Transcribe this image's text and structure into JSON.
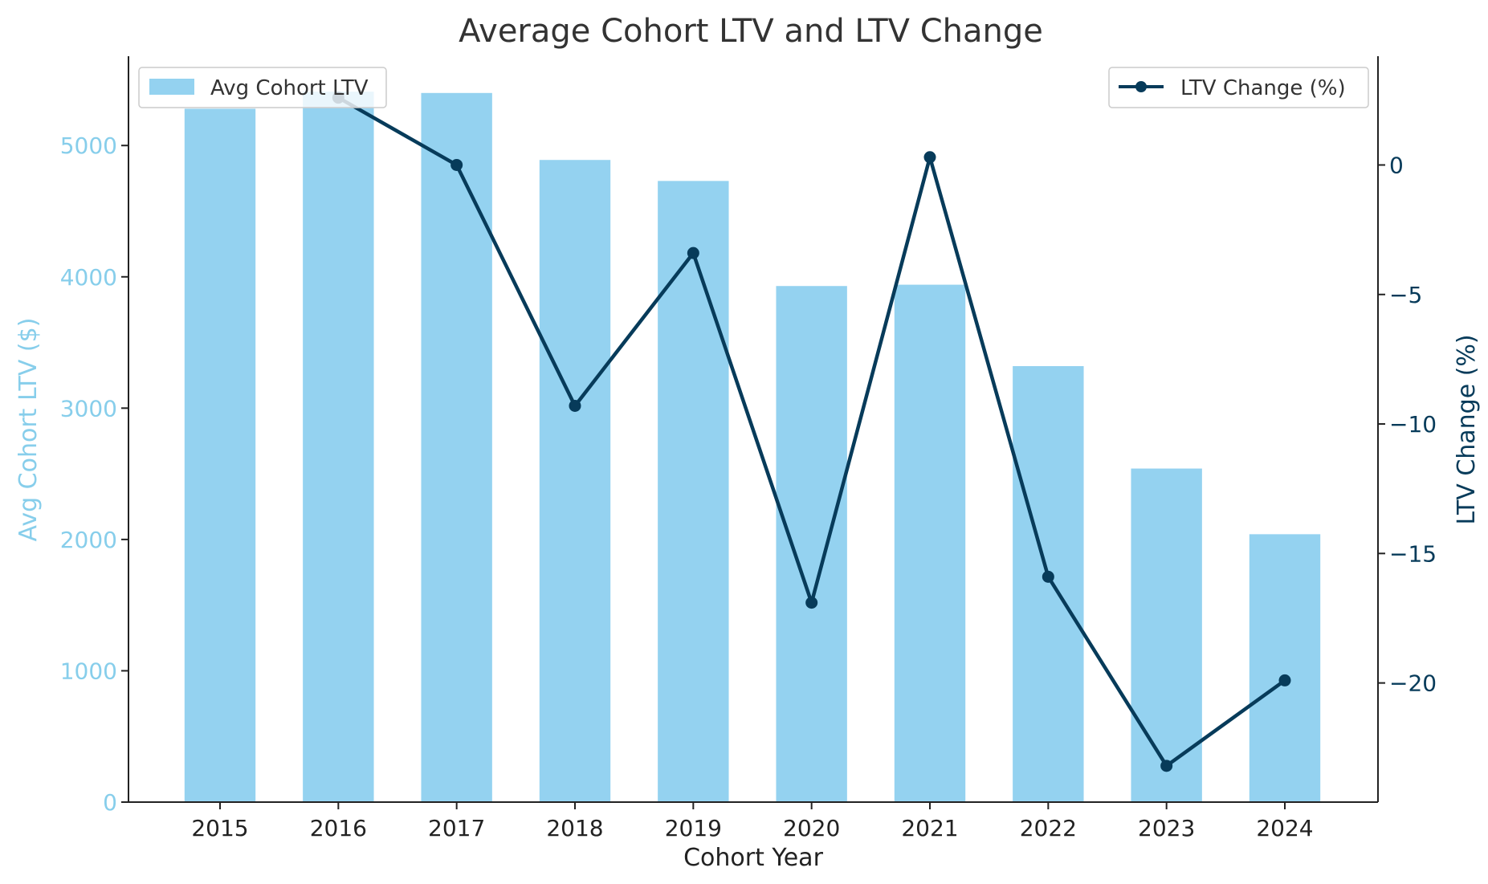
{
  "chart_data": {
    "type": "bar+line",
    "title": "Average Cohort LTV and LTV Change",
    "xlabel": "Cohort Year",
    "ylabel_left": "Avg Cohort LTV ($)",
    "ylabel_right": "LTV Change (%)",
    "categories": [
      "2015",
      "2016",
      "2017",
      "2018",
      "2019",
      "2020",
      "2021",
      "2022",
      "2023",
      "2024"
    ],
    "series": [
      {
        "name": "Avg Cohort LTV",
        "kind": "bar",
        "axis": "left",
        "color": "#94d2f0",
        "values": [
          5280,
          5410,
          5400,
          4890,
          4730,
          3930,
          3940,
          3320,
          2540,
          2040
        ]
      },
      {
        "name": "LTV Change (%)",
        "kind": "line",
        "axis": "right",
        "color": "#073b5a",
        "values": [
          null,
          2.6,
          0.0,
          -9.3,
          -3.4,
          -16.9,
          0.3,
          -15.9,
          -23.2,
          -19.9
        ]
      }
    ],
    "ylim_left": [
      0,
      5680
    ],
    "yticks_left": [
      "0",
      "1000",
      "2000",
      "3000",
      "4000",
      "5000"
    ],
    "yticks_left_values": [
      0,
      1000,
      2000,
      3000,
      4000,
      5000
    ],
    "ylim_right": [
      -24.6,
      4.2
    ],
    "yticks_right": [
      "−20",
      "−15",
      "−10",
      "−5",
      "0"
    ],
    "yticks_right_values": [
      -20,
      -15,
      -10,
      -5,
      0
    ],
    "left_axis_color": "#87ceeb",
    "right_axis_color": "#073b5a",
    "grid": false,
    "legend_left_placement": "top-left",
    "legend_right_placement": "top-right"
  }
}
